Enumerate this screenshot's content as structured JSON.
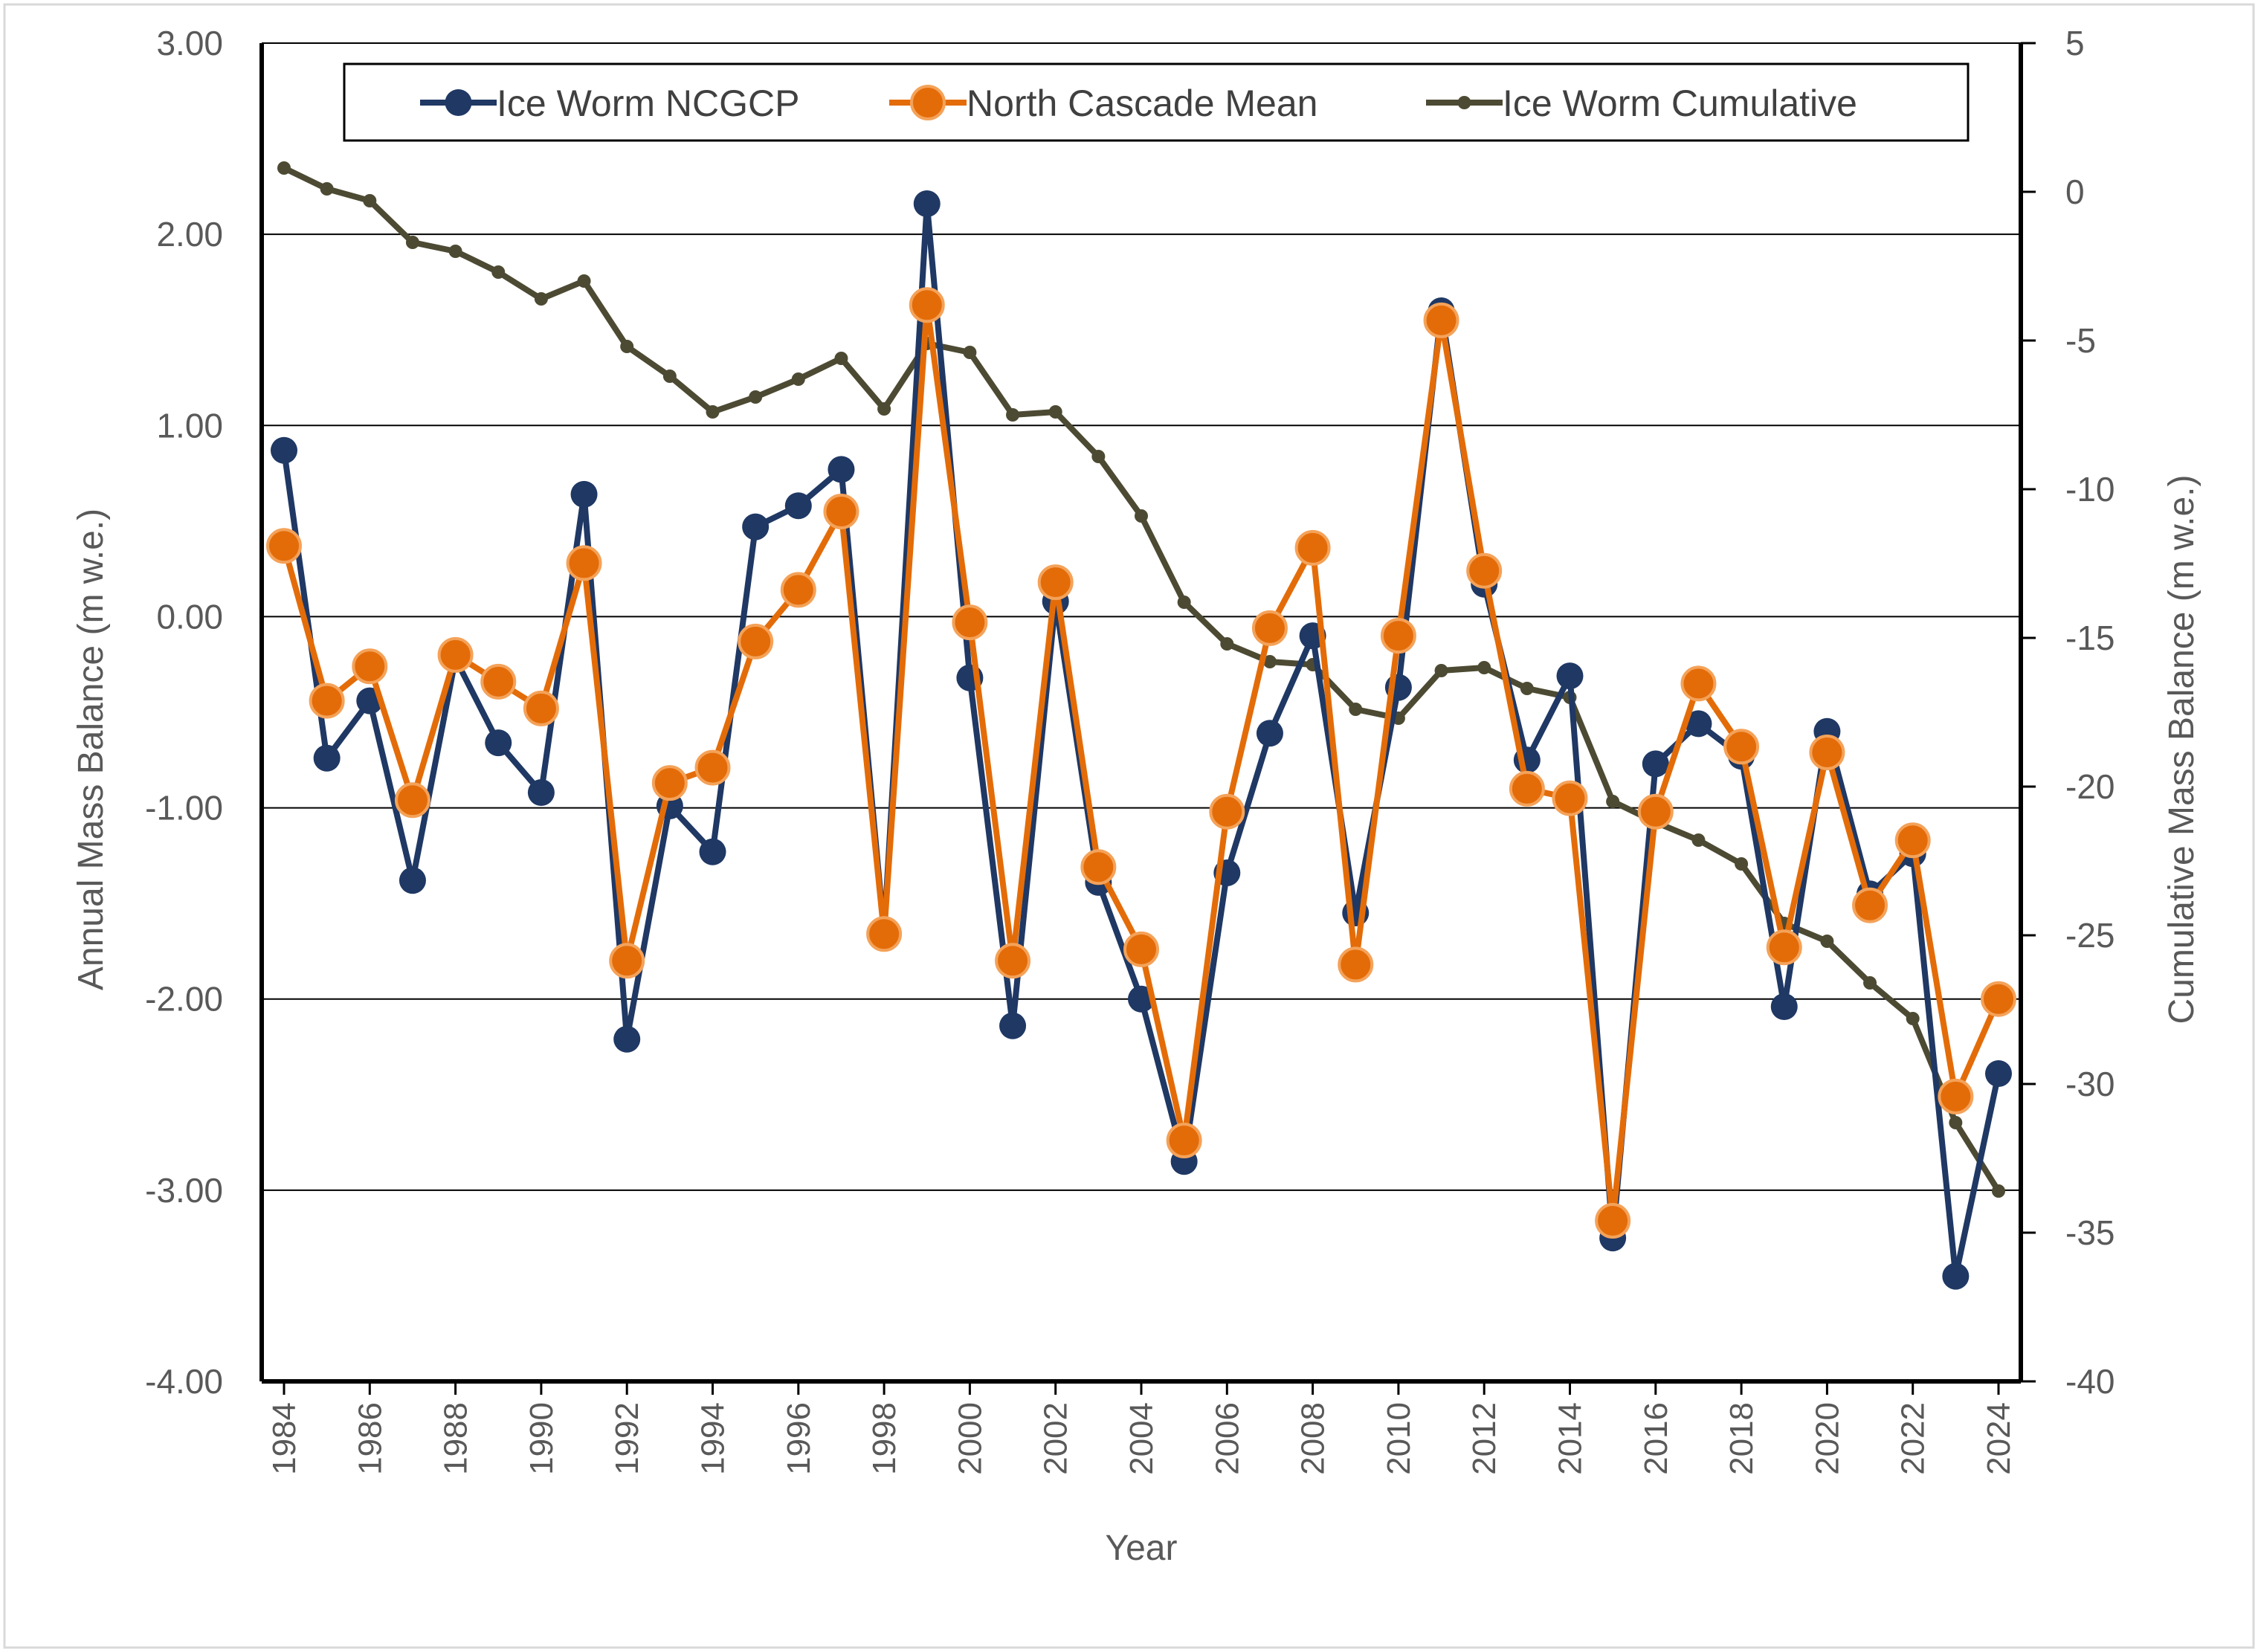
{
  "chart_data": {
    "type": "line",
    "title": "",
    "xlabel": "Year",
    "ylabel": "Annual Mass Balance (m w.e.)",
    "y2label": "Cumulative Mass Balance (m w.e.)",
    "ylim": [
      -4,
      3
    ],
    "y2lim": [
      -40,
      5
    ],
    "grid": "horizontal major gridlines",
    "legend_position": "top",
    "y_ticks": [
      "3.00",
      "2.00",
      "1.00",
      "0.00",
      "-1.00",
      "-2.00",
      "-3.00",
      "-4.00"
    ],
    "y_tick_values": [
      3,
      2,
      1,
      0,
      -1,
      -2,
      -3,
      -4
    ],
    "y2_ticks": [
      "5",
      "0",
      "-5",
      "-10",
      "-15",
      "-20",
      "-25",
      "-30",
      "-35",
      "-40"
    ],
    "y2_tick_values": [
      5,
      0,
      -5,
      -10,
      -15,
      -20,
      -25,
      -30,
      -35,
      -40
    ],
    "x_ticks": [
      "1984",
      "1986",
      "1988",
      "1990",
      "1992",
      "1994",
      "1996",
      "1998",
      "2000",
      "2002",
      "2004",
      "2006",
      "2008",
      "2010",
      "2012",
      "2014",
      "2016",
      "2018",
      "2020",
      "2022",
      "2024"
    ],
    "x": [
      1984,
      1985,
      1986,
      1987,
      1988,
      1989,
      1990,
      1991,
      1992,
      1993,
      1994,
      1995,
      1996,
      1997,
      1998,
      1999,
      2000,
      2001,
      2002,
      2003,
      2004,
      2005,
      2006,
      2007,
      2008,
      2009,
      2010,
      2011,
      2012,
      2013,
      2014,
      2015,
      2016,
      2017,
      2018,
      2019,
      2020,
      2021,
      2022,
      2023,
      2024
    ],
    "series": [
      {
        "name": "Ice Worm NCGCP",
        "axis": "left",
        "color": "#1f3864",
        "values": [
          0.87,
          -0.74,
          -0.44,
          -1.38,
          -0.22,
          -0.66,
          -0.92,
          0.64,
          -2.21,
          -0.99,
          -1.23,
          0.47,
          0.58,
          0.77,
          -1.65,
          2.16,
          -0.32,
          -2.14,
          0.08,
          -1.39,
          -2.0,
          -2.85,
          -1.34,
          -0.61,
          -0.1,
          -1.55,
          -0.37,
          1.6,
          0.17,
          -0.75,
          -0.31,
          -3.25,
          -0.77,
          -0.56,
          -0.73,
          -2.04,
          -0.6,
          -1.45,
          -1.24,
          -3.45,
          -2.39
        ]
      },
      {
        "name": "North Cascade Mean",
        "axis": "left",
        "color": "#e36c09",
        "values": [
          0.37,
          -0.44,
          -0.26,
          -0.96,
          -0.2,
          -0.34,
          -0.48,
          0.28,
          -1.8,
          -0.87,
          -0.79,
          -0.13,
          0.14,
          0.55,
          -1.66,
          1.63,
          -0.03,
          -1.8,
          0.18,
          -1.31,
          -1.74,
          -2.74,
          -1.02,
          -0.06,
          0.36,
          -1.82,
          -0.1,
          1.55,
          0.24,
          -0.9,
          -0.95,
          -3.16,
          -1.02,
          -0.35,
          -0.68,
          -1.73,
          -0.71,
          -1.51,
          -1.17,
          -2.51,
          -2.0
        ]
      },
      {
        "name": "Ice Worm Cumulative",
        "axis": "right",
        "color": "#4d4a33",
        "values": [
          0.8,
          0.1,
          -0.3,
          -1.7,
          -2.0,
          -2.7,
          -3.6,
          -3.0,
          -5.2,
          -6.2,
          -7.4,
          -6.9,
          -6.3,
          -5.6,
          -7.3,
          -5.1,
          -5.4,
          -7.5,
          -7.4,
          -8.9,
          -10.9,
          -13.8,
          -15.2,
          -15.8,
          -15.9,
          -17.4,
          -17.7,
          -16.1,
          -16.0,
          -16.7,
          -17.0,
          -20.5,
          -21.2,
          -21.8,
          -22.6,
          -24.6,
          -25.2,
          -26.6,
          -27.8,
          -31.3,
          -33.6
        ]
      }
    ]
  }
}
